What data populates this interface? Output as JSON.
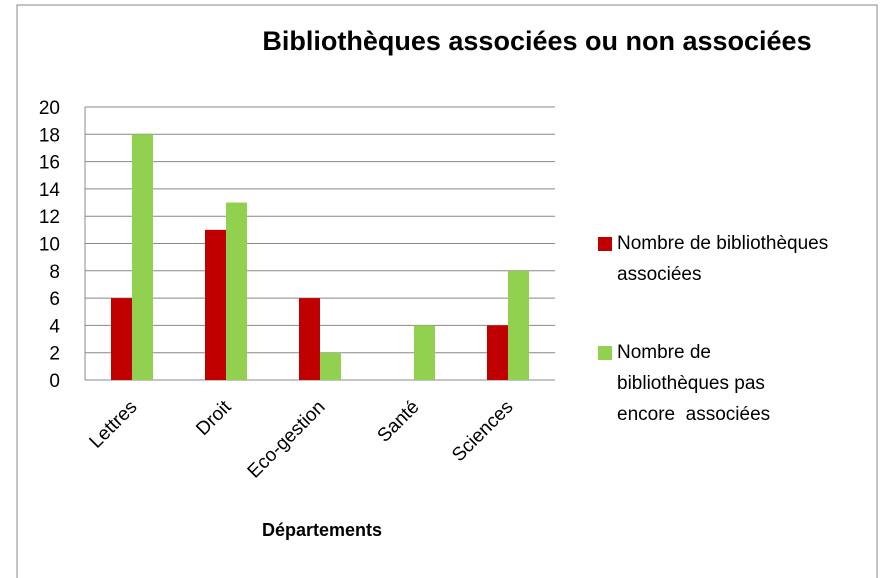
{
  "chart_data": {
    "type": "bar",
    "title": "Bibliothèques associées ou  non associées",
    "x_label": "Départements",
    "categories": [
      "Lettres",
      "Droit",
      "Eco-gestion",
      "Santé",
      "Sciences"
    ],
    "series": [
      {
        "name": "Nombre de bibliothèques associées",
        "color": "#c00000",
        "values": [
          6,
          11,
          6,
          0,
          4
        ]
      },
      {
        "name": "Nombre de bibliothèques pas encore  associées",
        "color": "#92d050",
        "values": [
          18,
          13,
          2,
          4,
          8
        ]
      }
    ],
    "ylim": [
      0,
      20
    ],
    "yticks": [
      0,
      2,
      4,
      6,
      8,
      10,
      12,
      14,
      16,
      18,
      20
    ],
    "grid": true,
    "legend": "right"
  }
}
